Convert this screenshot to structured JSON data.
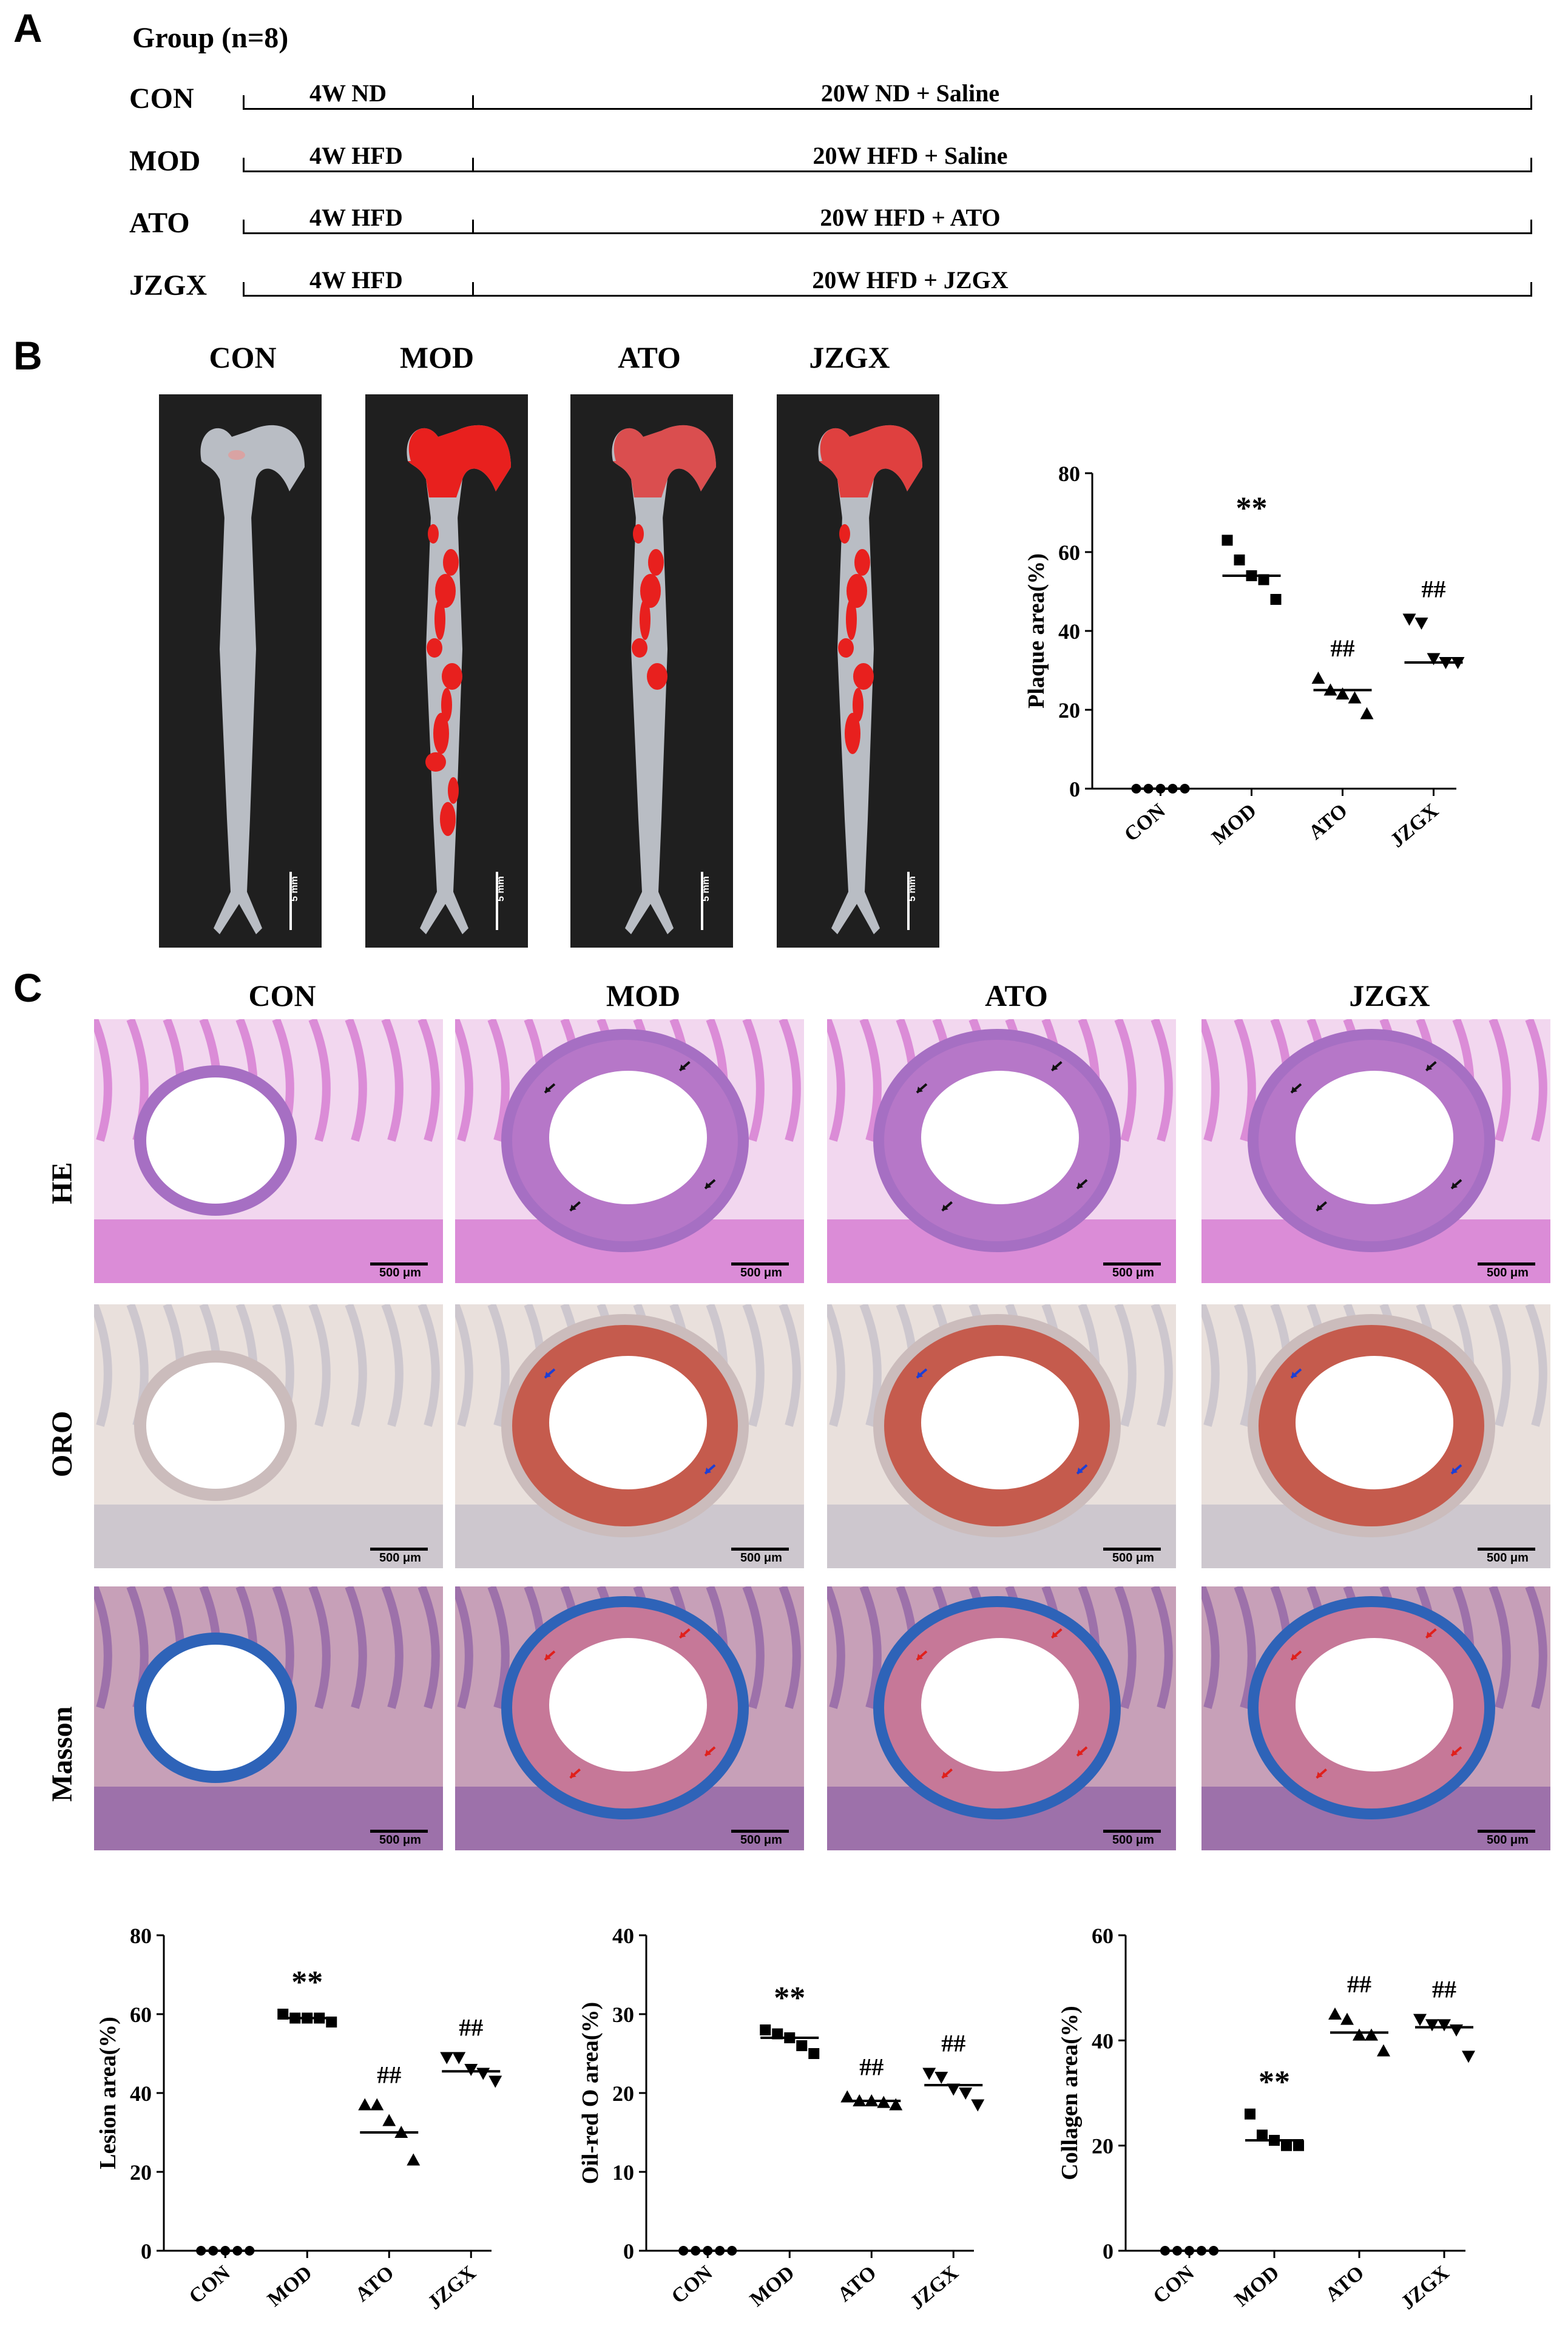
{
  "panel_a": {
    "letter": "A",
    "heading": "Group (n=8)",
    "rows": [
      {
        "group": "CON",
        "phase1": "4W ND",
        "phase2": "20W ND + Saline"
      },
      {
        "group": "MOD",
        "phase1": "4W HFD",
        "phase2": "20W HFD + Saline"
      },
      {
        "group": "ATO",
        "phase1": "4W HFD",
        "phase2": "20W HFD + ATO"
      },
      {
        "group": "JZGX",
        "phase1": "4W HFD",
        "phase2": "20W HFD + JZGX"
      }
    ]
  },
  "panel_b": {
    "letter": "B",
    "columns": [
      "CON",
      "MOD",
      "ATO",
      "JZGX"
    ],
    "scale_label": "5 mm"
  },
  "panel_c": {
    "letter": "C",
    "columns": [
      "CON",
      "MOD",
      "ATO",
      "JZGX"
    ],
    "rows": [
      "HE",
      "ORO",
      "Masson"
    ],
    "scale_label": "500 μm"
  },
  "chart_data": [
    {
      "type": "scatter",
      "ylabel": "Plaque area(%)",
      "ylim": [
        0,
        80
      ],
      "yticks": [
        0,
        20,
        40,
        60,
        80
      ],
      "categories": [
        "CON",
        "MOD",
        "ATO",
        "JZGX"
      ],
      "markers": [
        "circle",
        "square",
        "triangle-up",
        "triangle-down"
      ],
      "points": [
        [
          0,
          0,
          0,
          0,
          0
        ],
        [
          63,
          58,
          54,
          53,
          48
        ],
        [
          28,
          25,
          24,
          23,
          19
        ],
        [
          43,
          42,
          33,
          32,
          32
        ]
      ],
      "means": [
        0,
        54,
        25,
        32
      ],
      "annotations": [
        "",
        "**",
        "##",
        "##"
      ]
    },
    {
      "type": "scatter",
      "ylabel": "Lesion area(%)",
      "ylim": [
        0,
        80
      ],
      "yticks": [
        0,
        20,
        40,
        60,
        80
      ],
      "categories": [
        "CON",
        "MOD",
        "ATO",
        "JZGX"
      ],
      "markers": [
        "circle",
        "square",
        "triangle-up",
        "triangle-down"
      ],
      "points": [
        [
          0,
          0,
          0,
          0,
          0
        ],
        [
          60,
          59,
          59,
          59,
          58
        ],
        [
          37,
          37,
          33,
          30,
          23
        ],
        [
          49,
          49,
          46,
          45,
          43
        ]
      ],
      "means": [
        0,
        59,
        30,
        45.5
      ],
      "annotations": [
        "",
        "**",
        "##",
        "##"
      ]
    },
    {
      "type": "scatter",
      "ylabel": "Oil-red O area(%)",
      "ylim": [
        0,
        40
      ],
      "yticks": [
        0,
        10,
        20,
        30,
        40
      ],
      "categories": [
        "CON",
        "MOD",
        "ATO",
        "JZGX"
      ],
      "markers": [
        "circle",
        "square",
        "triangle-up",
        "triangle-down"
      ],
      "points": [
        [
          0,
          0,
          0,
          0,
          0
        ],
        [
          28,
          27.5,
          27,
          26,
          25
        ],
        [
          19.5,
          19,
          19,
          18.8,
          18.5
        ],
        [
          22.5,
          22,
          20.5,
          20,
          18.5
        ]
      ],
      "means": [
        0,
        27,
        19,
        21
      ],
      "annotations": [
        "",
        "**",
        "##",
        "##"
      ]
    },
    {
      "type": "scatter",
      "ylabel": "Collagen area(%)",
      "ylim": [
        0,
        60
      ],
      "yticks": [
        0,
        20,
        40,
        60
      ],
      "categories": [
        "CON",
        "MOD",
        "ATO",
        "JZGX"
      ],
      "markers": [
        "circle",
        "square",
        "triangle-up",
        "triangle-down"
      ],
      "points": [
        [
          0,
          0,
          0,
          0,
          0
        ],
        [
          26,
          22,
          21,
          20,
          20
        ],
        [
          45,
          44,
          41,
          41,
          38
        ],
        [
          44,
          43,
          43,
          42,
          37
        ]
      ],
      "means": [
        0,
        21,
        41.5,
        42.5
      ],
      "annotations": [
        "",
        "**",
        "##",
        "##"
      ]
    }
  ],
  "colors": {
    "stain_red": "#e8201e",
    "he_pink": "#d66ad0",
    "masson_blue": "#2e63b8",
    "photo_bg": "#1f1f1f"
  }
}
